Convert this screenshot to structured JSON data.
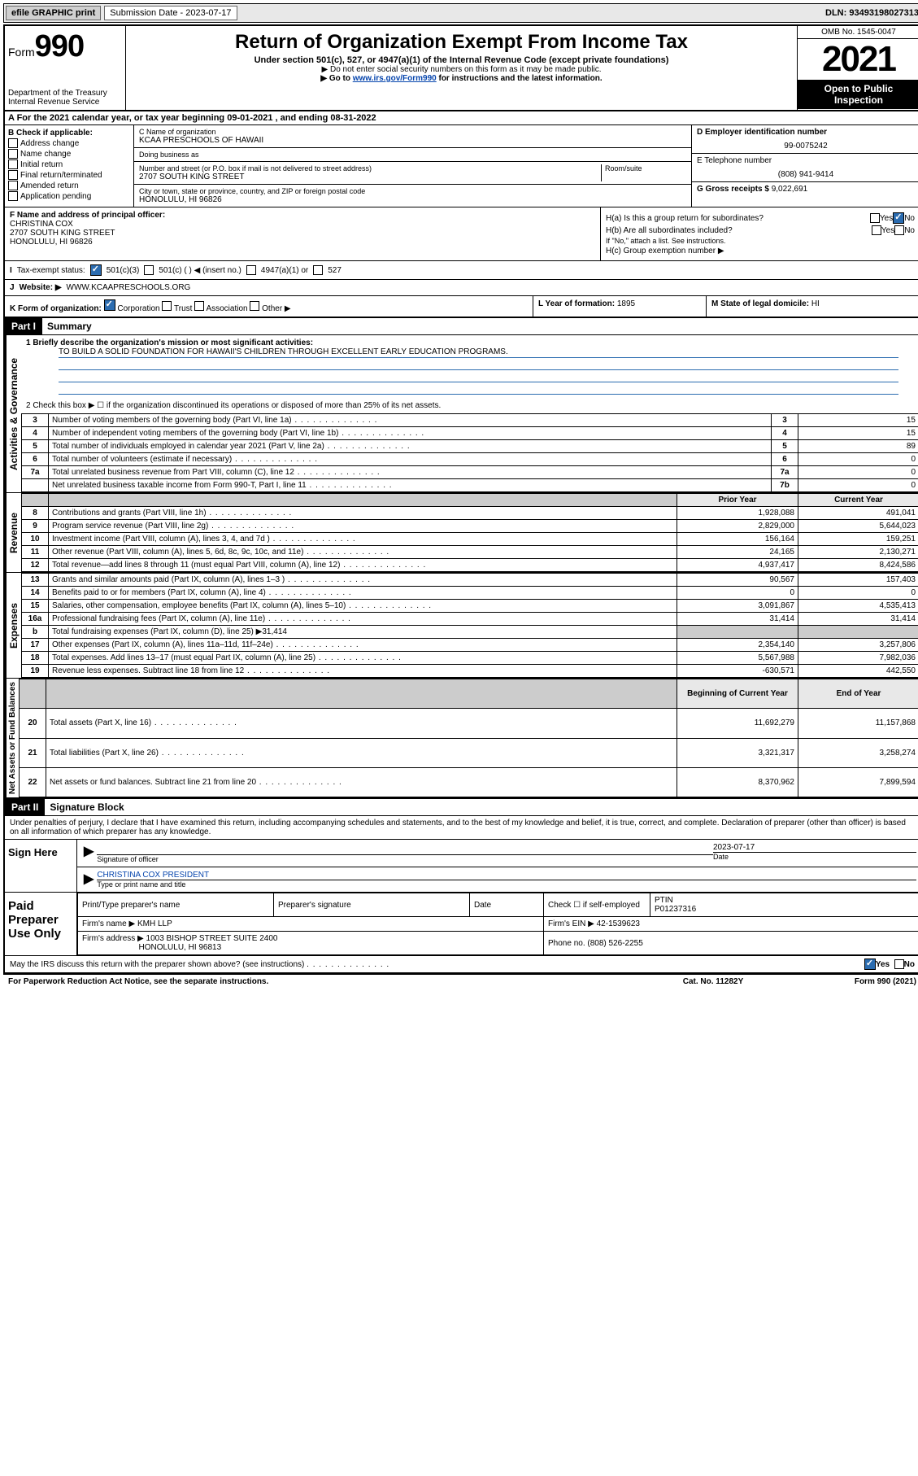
{
  "topbar": {
    "efile": "efile GRAPHIC print",
    "sub_label": "Submission Date - 2023-07-17",
    "dln": "DLN: 93493198027313"
  },
  "header": {
    "form_word": "Form",
    "form_num": "990",
    "dept": "Department of the Treasury",
    "irs": "Internal Revenue Service",
    "title": "Return of Organization Exempt From Income Tax",
    "sub1": "Under section 501(c), 527, or 4947(a)(1) of the Internal Revenue Code (except private foundations)",
    "sub2": "▶ Do not enter social security numbers on this form as it may be made public.",
    "sub3a": "▶ Go to ",
    "sub3_link": "www.irs.gov/Form990",
    "sub3b": " for instructions and the latest information.",
    "omb": "OMB No. 1545-0047",
    "year": "2021",
    "inspect": "Open to Public Inspection"
  },
  "rowA": {
    "text_a": "A For the 2021 calendar year, or tax year beginning ",
    "begin": "09-01-2021",
    "mid": " , and ending ",
    "end": "08-31-2022"
  },
  "colB": {
    "title": "B Check if applicable:",
    "opts": [
      "Address change",
      "Name change",
      "Initial return",
      "Final return/terminated",
      "Amended return",
      "Application pending"
    ]
  },
  "colC": {
    "name_label": "C Name of organization",
    "name": "KCAA PRESCHOOLS OF HAWAII",
    "dba_label": "Doing business as",
    "addr_label": "Number and street (or P.O. box if mail is not delivered to street address)",
    "room_label": "Room/suite",
    "addr": "2707 SOUTH KING STREET",
    "city_label": "City or town, state or province, country, and ZIP or foreign postal code",
    "city": "HONOLULU, HI  96826"
  },
  "colD": {
    "ein_label": "D Employer identification number",
    "ein": "99-0075242",
    "tel_label": "E Telephone number",
    "tel": "(808) 941-9414",
    "gross_label": "G Gross receipts $",
    "gross": "9,022,691"
  },
  "rowF": {
    "label": "F Name and address of principal officer:",
    "name": "CHRISTINA COX",
    "addr1": "2707 SOUTH KING STREET",
    "addr2": "HONOLULU, HI  96826"
  },
  "rowH": {
    "ha": "H(a)  Is this a group return for subordinates?",
    "hb": "H(b)  Are all subordinates included?",
    "hb_note": "If \"No,\" attach a list. See instructions.",
    "hc": "H(c)  Group exemption number ▶",
    "yes": "Yes",
    "no": "No"
  },
  "rowI": {
    "label": "Tax-exempt status:",
    "o1": "501(c)(3)",
    "o2": "501(c) (   ) ◀ (insert no.)",
    "o3": "4947(a)(1) or",
    "o4": "527"
  },
  "rowJ": {
    "label": "Website: ▶",
    "val": "WWW.KCAAPRESCHOOLS.ORG"
  },
  "rowK": {
    "label": "K Form of organization:",
    "o1": "Corporation",
    "o2": "Trust",
    "o3": "Association",
    "o4": "Other ▶"
  },
  "rowL": {
    "year_label": "L Year of formation:",
    "year": "1895",
    "state_label": "M State of legal domicile:",
    "state": "HI"
  },
  "part1": {
    "hdr": "Part I",
    "title": "Summary",
    "l1_label": "1  Briefly describe the organization's mission or most significant activities:",
    "mission": "TO BUILD A SOLID FOUNDATION FOR HAWAII'S CHILDREN THROUGH EXCELLENT EARLY EDUCATION PROGRAMS.",
    "l2": "2  Check this box ▶ ☐  if the organization discontinued its operations or disposed of more than 25% of its net assets.",
    "side1": "Activities & Governance",
    "side2": "Revenue",
    "side3": "Expenses",
    "side4": "Net Assets or Fund Balances",
    "gov": [
      {
        "n": "3",
        "d": "Number of voting members of the governing body (Part VI, line 1a)",
        "b": "3",
        "v": "15"
      },
      {
        "n": "4",
        "d": "Number of independent voting members of the governing body (Part VI, line 1b)",
        "b": "4",
        "v": "15"
      },
      {
        "n": "5",
        "d": "Total number of individuals employed in calendar year 2021 (Part V, line 2a)",
        "b": "5",
        "v": "89"
      },
      {
        "n": "6",
        "d": "Total number of volunteers (estimate if necessary)",
        "b": "6",
        "v": "0"
      },
      {
        "n": "7a",
        "d": "Total unrelated business revenue from Part VIII, column (C), line 12",
        "b": "7a",
        "v": "0"
      },
      {
        "n": "",
        "d": "Net unrelated business taxable income from Form 990-T, Part I, line 11",
        "b": "7b",
        "v": "0"
      }
    ],
    "prior": "Prior Year",
    "current": "Current Year",
    "rev": [
      {
        "n": "8",
        "d": "Contributions and grants (Part VIII, line 1h)",
        "p": "1,928,088",
        "c": "491,041"
      },
      {
        "n": "9",
        "d": "Program service revenue (Part VIII, line 2g)",
        "p": "2,829,000",
        "c": "5,644,023"
      },
      {
        "n": "10",
        "d": "Investment income (Part VIII, column (A), lines 3, 4, and 7d )",
        "p": "156,164",
        "c": "159,251"
      },
      {
        "n": "11",
        "d": "Other revenue (Part VIII, column (A), lines 5, 6d, 8c, 9c, 10c, and 11e)",
        "p": "24,165",
        "c": "2,130,271"
      },
      {
        "n": "12",
        "d": "Total revenue—add lines 8 through 11 (must equal Part VIII, column (A), line 12)",
        "p": "4,937,417",
        "c": "8,424,586"
      }
    ],
    "exp": [
      {
        "n": "13",
        "d": "Grants and similar amounts paid (Part IX, column (A), lines 1–3 )",
        "p": "90,567",
        "c": "157,403"
      },
      {
        "n": "14",
        "d": "Benefits paid to or for members (Part IX, column (A), line 4)",
        "p": "0",
        "c": "0"
      },
      {
        "n": "15",
        "d": "Salaries, other compensation, employee benefits (Part IX, column (A), lines 5–10)",
        "p": "3,091,867",
        "c": "4,535,413"
      },
      {
        "n": "16a",
        "d": "Professional fundraising fees (Part IX, column (A), line 11e)",
        "p": "31,414",
        "c": "31,414"
      },
      {
        "n": "b",
        "d": "Total fundraising expenses (Part IX, column (D), line 25) ▶31,414",
        "p": "",
        "c": "",
        "shade": true
      },
      {
        "n": "17",
        "d": "Other expenses (Part IX, column (A), lines 11a–11d, 11f–24e)",
        "p": "2,354,140",
        "c": "3,257,806"
      },
      {
        "n": "18",
        "d": "Total expenses. Add lines 13–17 (must equal Part IX, column (A), line 25)",
        "p": "5,567,988",
        "c": "7,982,036"
      },
      {
        "n": "19",
        "d": "Revenue less expenses. Subtract line 18 from line 12",
        "p": "-630,571",
        "c": "442,550"
      }
    ],
    "beg": "Beginning of Current Year",
    "end": "End of Year",
    "net": [
      {
        "n": "20",
        "d": "Total assets (Part X, line 16)",
        "p": "11,692,279",
        "c": "11,157,868"
      },
      {
        "n": "21",
        "d": "Total liabilities (Part X, line 26)",
        "p": "3,321,317",
        "c": "3,258,274"
      },
      {
        "n": "22",
        "d": "Net assets or fund balances. Subtract line 21 from line 20",
        "p": "8,370,962",
        "c": "7,899,594"
      }
    ]
  },
  "part2": {
    "hdr": "Part II",
    "title": "Signature Block",
    "jurat": "Under penalties of perjury, I declare that I have examined this return, including accompanying schedules and statements, and to the best of my knowledge and belief, it is true, correct, and complete. Declaration of preparer (other than officer) is based on all information of which preparer has any knowledge.",
    "sign_here": "Sign Here",
    "sig_officer": "Signature of officer",
    "date_label": "Date",
    "date": "2023-07-17",
    "name_title": "CHRISTINA COX  PRESIDENT",
    "type_label": "Type or print name and title",
    "paid": "Paid Preparer Use Only",
    "pt_name_label": "Print/Type preparer's name",
    "prep_sig_label": "Preparer's signature",
    "check_if": "Check ☐ if self-employed",
    "ptin_label": "PTIN",
    "ptin": "P01237316",
    "firm_name_label": "Firm's name    ▶",
    "firm_name": "KMH LLP",
    "firm_ein_label": "Firm's EIN ▶",
    "firm_ein": "42-1539623",
    "firm_addr_label": "Firm's address ▶",
    "firm_addr1": "1003 BISHOP STREET SUITE 2400",
    "firm_addr2": "HONOLULU, HI  96813",
    "phone_label": "Phone no.",
    "phone": "(808) 526-2255",
    "discuss": "May the IRS discuss this return with the preparer shown above? (see instructions)",
    "yes": "Yes",
    "no": "No"
  },
  "footer": {
    "pra": "For Paperwork Reduction Act Notice, see the separate instructions.",
    "cat": "Cat. No. 11282Y",
    "form": "Form 990 (2021)"
  }
}
